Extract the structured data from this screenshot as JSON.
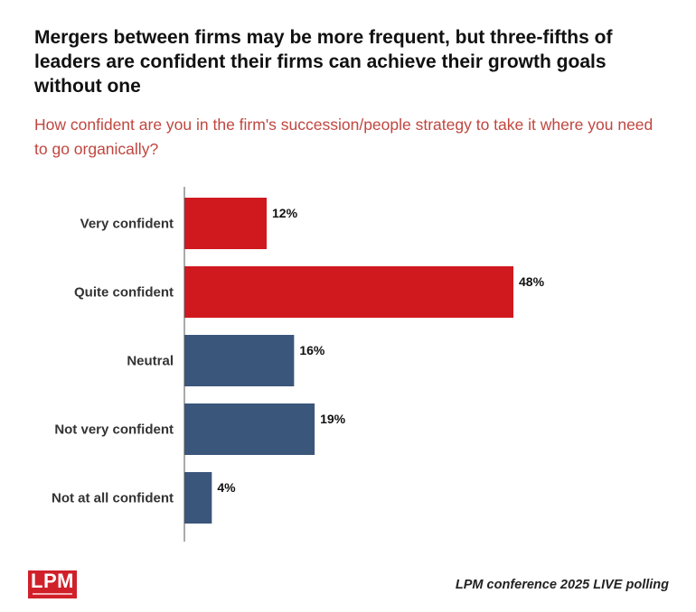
{
  "header": {
    "title": "Mergers between firms may be more frequent, but three-fifths of leaders are confident their firms can achieve their growth goals without one",
    "subtitle": "How confident are you in the firm's succession/people strategy to take it where you need to go organically?"
  },
  "footer": {
    "logo_text": "LPM",
    "source": "LPM conference 2025 LIVE polling"
  },
  "chart_data": {
    "type": "bar",
    "orientation": "horizontal",
    "categories": [
      "Very confident",
      "Quite confident",
      "Neutral",
      "Not very confident",
      "Not at all confident"
    ],
    "values": [
      12,
      48,
      16,
      19,
      4
    ],
    "value_labels": [
      "12%",
      "48%",
      "16%",
      "19%",
      "4%"
    ],
    "colors": [
      "#d0191f",
      "#d0191f",
      "#3a567b",
      "#3a567b",
      "#3a567b"
    ],
    "xlim": [
      0,
      52
    ],
    "grid": false,
    "legend": "none"
  }
}
